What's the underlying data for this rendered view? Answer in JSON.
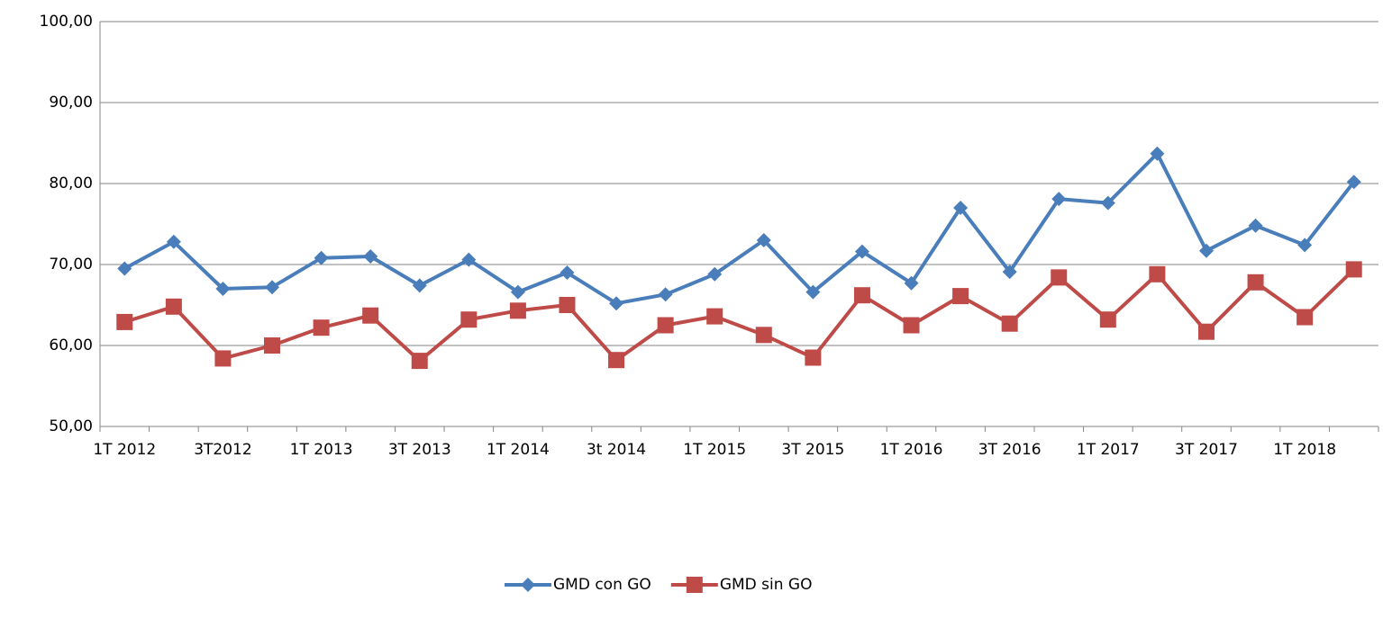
{
  "chart_data": {
    "type": "line",
    "categories": [
      "1T 2012",
      null,
      "3T2012",
      null,
      "1T 2013",
      null,
      "3T 2013",
      null,
      "1T 2014",
      null,
      "3t 2014",
      null,
      "1T 2015",
      null,
      "3T 2015",
      null,
      "1T 2016",
      null,
      "3T 2016",
      null,
      "1T 2017",
      null,
      "3T 2017",
      null,
      "1T 2018",
      null
    ],
    "series": [
      {
        "name": "GMD con GO",
        "color": "#4a7ebb",
        "marker": "diamond",
        "values": [
          69.5,
          72.8,
          67.0,
          67.2,
          70.8,
          71.0,
          67.4,
          70.6,
          66.6,
          69.0,
          65.2,
          66.3,
          68.8,
          73.0,
          66.6,
          71.6,
          67.7,
          77.0,
          69.1,
          78.1,
          77.6,
          83.7,
          71.7,
          74.8,
          72.4,
          80.2
        ]
      },
      {
        "name": "GMD sin GO",
        "color": "#be4b48",
        "marker": "square",
        "values": [
          62.9,
          64.8,
          58.4,
          60.0,
          62.2,
          63.7,
          58.1,
          63.2,
          64.3,
          65.0,
          58.2,
          62.5,
          63.6,
          61.3,
          58.5,
          66.2,
          62.5,
          66.1,
          62.7,
          68.4,
          63.2,
          68.8,
          61.7,
          67.8,
          63.5,
          69.4
        ]
      }
    ],
    "ylim": [
      50,
      100
    ],
    "yticks": [
      {
        "value": 50,
        "label": "50,00"
      },
      {
        "value": 60,
        "label": "60,00"
      },
      {
        "value": 70,
        "label": "70,00"
      },
      {
        "value": 80,
        "label": "80,00"
      },
      {
        "value": 90,
        "label": "90,00"
      },
      {
        "value": 100,
        "label": "100,00"
      }
    ],
    "grid": true,
    "legend": "bottom"
  }
}
